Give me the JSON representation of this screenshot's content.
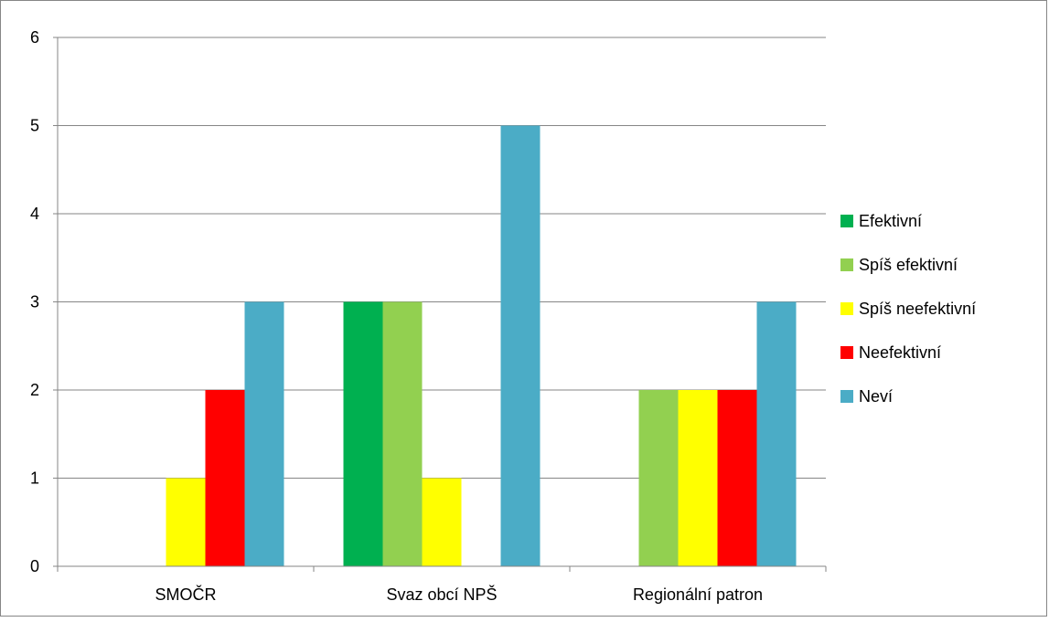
{
  "chart_data": {
    "type": "bar",
    "title": "",
    "xlabel": "",
    "ylabel": "",
    "categories": [
      "SMOČR",
      "Svaz obcí NPŠ",
      "Regionální patron"
    ],
    "series": [
      {
        "name": "Efektivní",
        "color": "#00b050",
        "values": [
          0,
          3,
          0
        ]
      },
      {
        "name": "Spíš efektivní",
        "color": "#92d050",
        "values": [
          0,
          3,
          2
        ]
      },
      {
        "name": "Spíš neefektivní",
        "color": "#ffff00",
        "values": [
          1,
          1,
          2
        ]
      },
      {
        "name": "Neefektivní",
        "color": "#ff0000",
        "values": [
          2,
          0,
          2
        ]
      },
      {
        "name": "Neví",
        "color": "#4bacc6",
        "values": [
          3,
          5,
          3
        ]
      }
    ],
    "ylim": [
      0,
      6
    ],
    "yticks": [
      0,
      1,
      2,
      3,
      4,
      5,
      6
    ],
    "grid": true,
    "legend_position": "right"
  }
}
